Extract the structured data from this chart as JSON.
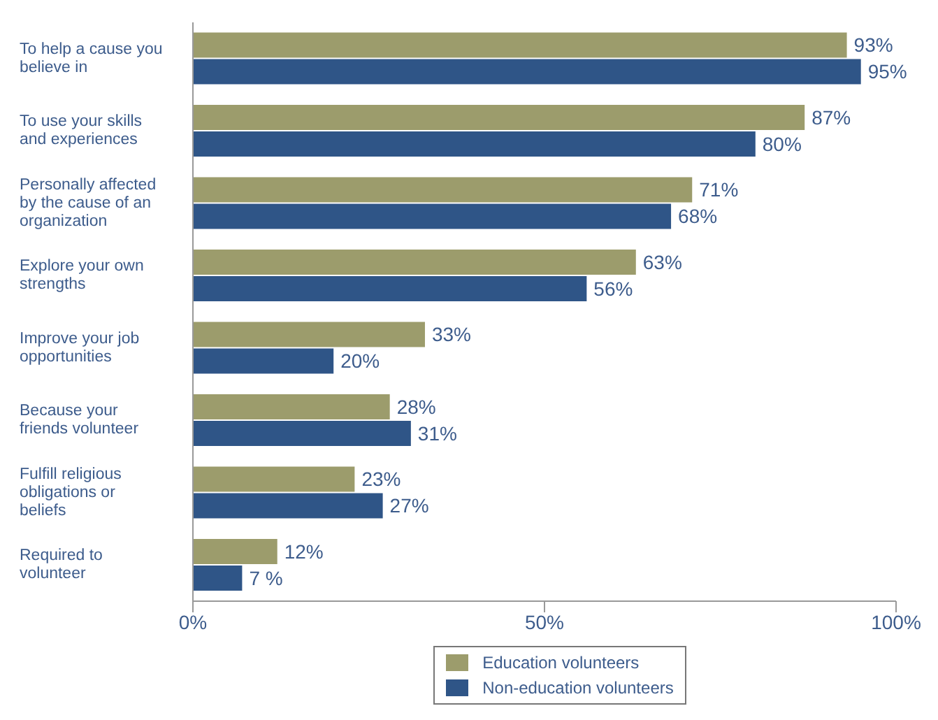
{
  "chart_data": {
    "type": "bar",
    "orientation": "horizontal",
    "categories": [
      "To help a cause you believe in",
      "To use your skills and experiences",
      "Personally affected by the cause of an organization",
      "Explore your own strengths",
      "Improve your job opportunities",
      "Because your friends volunteer",
      "Fulfill religious obligations or beliefs",
      "Required to volunteer"
    ],
    "series": [
      {
        "name": "Education volunteers",
        "color": "#9c9c6c",
        "values": [
          93,
          87,
          71,
          63,
          33,
          28,
          23,
          12
        ],
        "value_labels": [
          "93%",
          "87%",
          "71%",
          "63%",
          "33%",
          "28%",
          "23%",
          "12%"
        ]
      },
      {
        "name": "Non-education volunteers",
        "color": "#2f5587",
        "values": [
          95,
          80,
          68,
          56,
          20,
          31,
          27,
          7
        ],
        "value_labels": [
          "95%",
          "80%",
          "68%",
          "56%",
          "20%",
          "31%",
          "27%",
          "7 %"
        ]
      }
    ],
    "xlim": [
      0,
      100
    ],
    "xticks": [
      {
        "value": 0,
        "label": "0%"
      },
      {
        "value": 50,
        "label": "50%"
      },
      {
        "value": 100,
        "label": "100%"
      }
    ],
    "grid": false,
    "legend": "bottom"
  }
}
